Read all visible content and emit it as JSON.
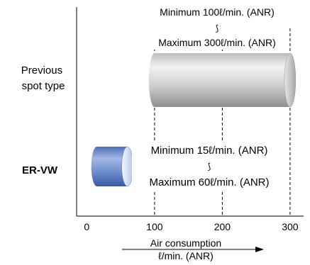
{
  "chart_data": {
    "type": "bar",
    "orientation": "horizontal",
    "categories": [
      "Previous spot type",
      "ER-VW"
    ],
    "category_label_lines": [
      [
        "Previous",
        "spot type"
      ],
      [
        "ER-VW"
      ]
    ],
    "ranges": [
      {
        "category": "Previous spot type",
        "min": 100,
        "max": 300,
        "note_min": "Minimum 100ℓ/min. (ANR)",
        "note_max": "Maximum 300ℓ/min. (ANR)",
        "color": "#c9c9c9"
      },
      {
        "category": "ER-VW",
        "min": 15,
        "max": 60,
        "note_min": "Minimum 15ℓ/min. (ANR)",
        "note_max": "Maximum 60ℓ/min. (ANR)",
        "color": "#6d8ccc"
      }
    ],
    "range_symbol": "⟆",
    "xlabel_lines": [
      "Air consumption",
      "ℓ/min. (ANR)"
    ],
    "xticks": [
      0,
      100,
      200,
      300
    ],
    "xlim": [
      -15,
      320
    ],
    "gridlines": [
      100,
      200,
      300
    ],
    "grid_style": "dashed"
  }
}
